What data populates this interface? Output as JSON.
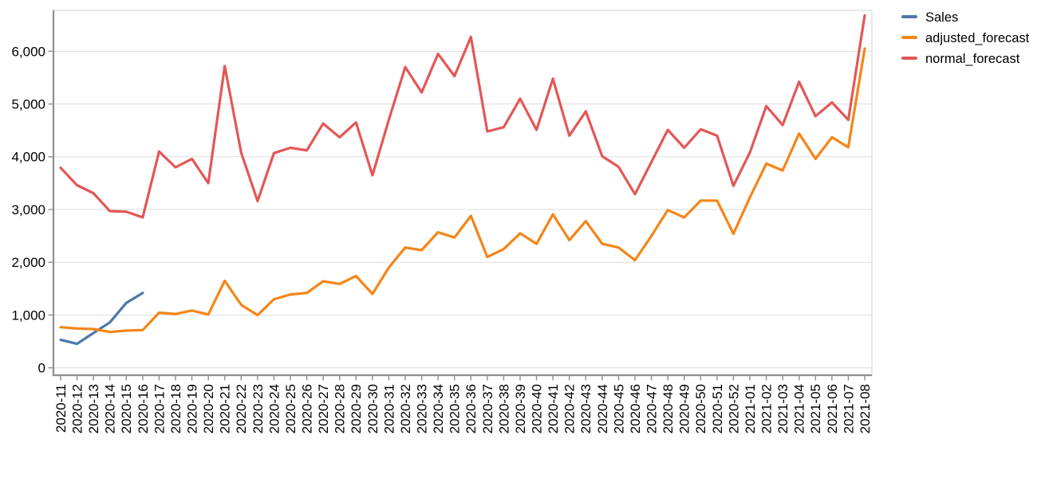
{
  "chart_data": {
    "type": "line",
    "title": "",
    "xlabel": "",
    "ylabel": "",
    "grid": true,
    "legend_position": "right",
    "x_label_rotation": -90,
    "ylim": [
      0,
      6800
    ],
    "yticks": [
      0,
      1000,
      2000,
      3000,
      4000,
      5000,
      6000
    ],
    "ytick_labels": [
      "0",
      "1,000",
      "2,000",
      "3,000",
      "4,000",
      "5,000",
      "6,000"
    ],
    "categories": [
      "2020-11",
      "2020-12",
      "2020-13",
      "2020-14",
      "2020-15",
      "2020-16",
      "2020-17",
      "2020-18",
      "2020-19",
      "2020-20",
      "2020-21",
      "2020-22",
      "2020-23",
      "2020-24",
      "2020-25",
      "2020-26",
      "2020-27",
      "2020-28",
      "2020-29",
      "2020-30",
      "2020-31",
      "2020-32",
      "2020-33",
      "2020-34",
      "2020-35",
      "2020-36",
      "2020-37",
      "2020-38",
      "2020-39",
      "2020-40",
      "2020-41",
      "2020-42",
      "2020-43",
      "2020-44",
      "2020-45",
      "2020-46",
      "2020-47",
      "2020-48",
      "2020-49",
      "2020-50",
      "2020-51",
      "2020-52",
      "2021-01",
      "2021-02",
      "2021-03",
      "2021-04",
      "2021-05",
      "2021-06",
      "2021-07",
      "2021-08"
    ],
    "series": [
      {
        "name": "Sales",
        "color": "#4c78a8",
        "values": [
          530,
          455,
          660,
          860,
          1230,
          1420,
          null,
          null,
          null,
          null,
          null,
          null,
          null,
          null,
          null,
          null,
          null,
          null,
          null,
          null,
          null,
          null,
          null,
          null,
          null,
          null,
          null,
          null,
          null,
          null,
          null,
          null,
          null,
          null,
          null,
          null,
          null,
          null,
          null,
          null,
          null,
          null,
          null,
          null,
          null,
          null,
          null,
          null,
          null,
          null
        ]
      },
      {
        "name": "adjusted_forecast",
        "color": "#f58518",
        "values": [
          770,
          745,
          735,
          680,
          705,
          715,
          1045,
          1020,
          1085,
          1010,
          1650,
          1195,
          1000,
          1300,
          1390,
          1420,
          1640,
          1590,
          1740,
          1400,
          1900,
          2280,
          2230,
          2570,
          2470,
          2880,
          2100,
          2250,
          2550,
          2350,
          2910,
          2420,
          2780,
          2350,
          2280,
          2040,
          2500,
          2990,
          2850,
          3170,
          3170,
          2540,
          3230,
          3870,
          3740,
          4440,
          3960,
          4370,
          4180,
          6050
        ]
      },
      {
        "name": "normal_forecast",
        "color": "#e45756",
        "values": [
          3790,
          3460,
          3310,
          2970,
          2960,
          2850,
          4100,
          3800,
          3960,
          3500,
          5720,
          4080,
          3160,
          4070,
          4170,
          4120,
          4630,
          4370,
          4650,
          3650,
          4700,
          5700,
          5220,
          5950,
          5530,
          6270,
          4480,
          4560,
          5100,
          4510,
          5480,
          4400,
          4860,
          4010,
          3810,
          3290,
          3900,
          4510,
          4170,
          4520,
          4400,
          3450,
          4080,
          4960,
          4600,
          5420,
          4770,
          5030,
          4700,
          6680
        ]
      }
    ],
    "style": {
      "grid_color": "#dddddd",
      "frame_color": "#d9d9d9",
      "axis_color": "#8f8f8f",
      "tick_label_color": "#000000",
      "legend_text_color": "#000000"
    }
  }
}
